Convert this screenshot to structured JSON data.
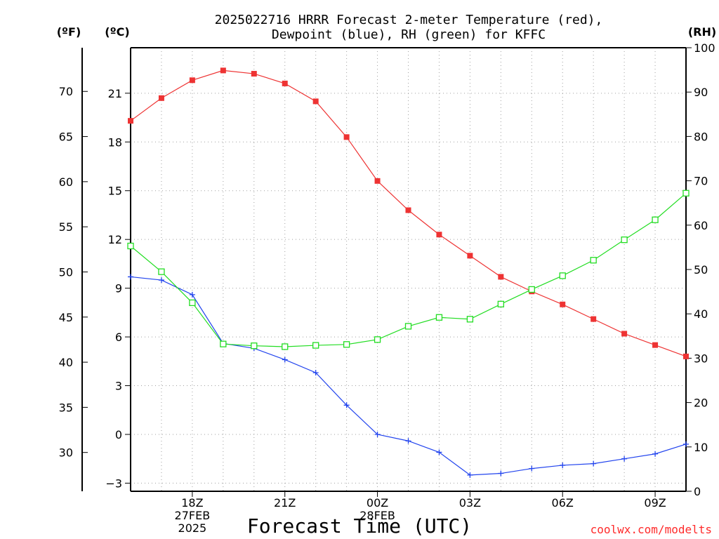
{
  "chart_data": {
    "type": "line",
    "title": [
      "2025022716 HRRR Forecast 2-meter Temperature (red),",
      "Dewpoint (blue), RH (green) for KFFC"
    ],
    "xlabel": "Forecast Time (UTC)",
    "credit": "coolwx.com/modelts",
    "units": {
      "fahrenheit": "(ºF)",
      "celsius": "(ºC)",
      "rh": "(RH)"
    },
    "x": [
      16,
      17,
      18,
      19,
      20,
      21,
      22,
      23,
      24,
      25,
      26,
      27,
      28,
      29,
      30,
      31,
      32,
      33,
      34
    ],
    "xlim": [
      16,
      34
    ],
    "x_ticks": [
      {
        "x": 18,
        "lines": [
          "18Z",
          "27FEB",
          "2025"
        ]
      },
      {
        "x": 21,
        "lines": [
          "21Z"
        ]
      },
      {
        "x": 24,
        "lines": [
          "00Z",
          "28FEB"
        ]
      },
      {
        "x": 27,
        "lines": [
          "03Z"
        ]
      },
      {
        "x": 30,
        "lines": [
          "06Z"
        ]
      },
      {
        "x": 33,
        "lines": [
          "09Z"
        ]
      }
    ],
    "celsius_axis": {
      "ylim": [
        -3.5,
        23.8
      ],
      "ticks": [
        -3,
        0,
        3,
        6,
        9,
        12,
        15,
        18,
        21
      ],
      "labels": [
        "−3",
        "0",
        "3",
        "6",
        "9",
        "12",
        "15",
        "18",
        "21"
      ]
    },
    "fahrenheit_axis": {
      "ticks": [
        30,
        35,
        40,
        45,
        50,
        55,
        60,
        65,
        70
      ],
      "labels": [
        "30",
        "35",
        "40",
        "45",
        "50",
        "55",
        "60",
        "65",
        "70"
      ]
    },
    "rh_axis": {
      "ylim": [
        0,
        100
      ],
      "ticks": [
        0,
        10,
        20,
        30,
        40,
        50,
        60,
        70,
        80,
        90,
        100
      ],
      "labels": [
        "0",
        "10",
        "20",
        "30",
        "40",
        "50",
        "60",
        "70",
        "80",
        "90",
        "100"
      ]
    },
    "series": [
      {
        "name": "Temperature (red)",
        "axis": "celsius",
        "color": "#ee3333",
        "marker": "filled-square",
        "values": [
          19.3,
          20.7,
          21.8,
          22.4,
          22.2,
          21.6,
          20.5,
          18.3,
          15.6,
          13.8,
          12.3,
          11.0,
          9.7,
          8.8,
          8.0,
          7.1,
          6.2,
          5.5,
          4.8
        ]
      },
      {
        "name": "Dewpoint (blue)",
        "axis": "celsius",
        "color": "#2244ee",
        "marker": "plus",
        "values": [
          9.7,
          9.5,
          8.6,
          5.6,
          5.3,
          4.6,
          3.8,
          1.8,
          0.0,
          -0.4,
          -1.1,
          -2.5,
          -2.4,
          -2.1,
          -1.9,
          -1.8,
          -1.5,
          -1.2,
          -0.6
        ]
      },
      {
        "name": "RH (green)",
        "axis": "rh",
        "color": "#22dd22",
        "marker": "open-square",
        "values": [
          55.3,
          49.5,
          42.5,
          33.2,
          32.8,
          32.6,
          32.9,
          33.1,
          34.2,
          37.2,
          39.2,
          38.8,
          42.2,
          45.5,
          48.6,
          52.1,
          56.7,
          61.2,
          67.2
        ]
      }
    ],
    "grid": true
  }
}
